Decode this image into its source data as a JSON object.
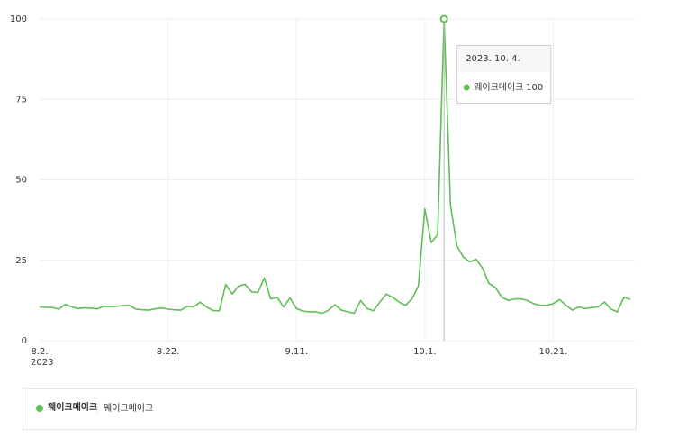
{
  "chart_data": {
    "type": "line",
    "categories": [
      "8.2.",
      null,
      null,
      null,
      null,
      null,
      null,
      null,
      null,
      null,
      null,
      null,
      null,
      null,
      null,
      null,
      null,
      null,
      null,
      null,
      "8.22.",
      null,
      null,
      null,
      null,
      null,
      null,
      null,
      null,
      null,
      null,
      null,
      null,
      null,
      null,
      null,
      null,
      null,
      null,
      null,
      "9.11.",
      null,
      null,
      null,
      null,
      null,
      null,
      null,
      null,
      null,
      null,
      null,
      null,
      null,
      null,
      null,
      null,
      null,
      null,
      null,
      "10.1.",
      null,
      null,
      null,
      null,
      null,
      null,
      null,
      null,
      null,
      null,
      null,
      null,
      null,
      null,
      null,
      null,
      null,
      null,
      null,
      "10.21.",
      null,
      null,
      null,
      null,
      null,
      null,
      null,
      null,
      null,
      null,
      null,
      null
    ],
    "x_year": "2023",
    "series": [
      {
        "name": "웨이크메이크",
        "color": "#5fbf55",
        "values": [
          10.5,
          10.4,
          10.3,
          9.8,
          11.3,
          10.5,
          10,
          10.2,
          10.1,
          9.9,
          10.7,
          10.6,
          10.7,
          10.9,
          11,
          9.8,
          9.6,
          9.5,
          9.9,
          10.2,
          9.8,
          9.6,
          9.5,
          10.7,
          10.5,
          12,
          10.5,
          9.4,
          9.3,
          17.5,
          14.5,
          17,
          17.5,
          15.2,
          15,
          19.5,
          13,
          13.5,
          10.5,
          13.3,
          10,
          9.2,
          9,
          9,
          8.5,
          9.5,
          11.2,
          9.5,
          9,
          8.5,
          12.5,
          10,
          9.3,
          12,
          14.5,
          13.5,
          12,
          11,
          13,
          17,
          41,
          30.5,
          33,
          100,
          42,
          29.5,
          26,
          24.5,
          25.3,
          22.5,
          17.8,
          16.5,
          13.5,
          12.5,
          13,
          13,
          12.5,
          11.5,
          11,
          11,
          11.5,
          12.8,
          11,
          9.5,
          10.5,
          10,
          10.3,
          10.5,
          12,
          9.8,
          9,
          13.5,
          12.8
        ]
      }
    ],
    "ylim": [
      0,
      100
    ],
    "yticks": [
      0,
      25,
      50,
      75,
      100
    ],
    "grid": true,
    "tooltip": {
      "date": "2023. 10. 4.",
      "index": 63
    },
    "legend_keyword": "웨이크메이크"
  }
}
